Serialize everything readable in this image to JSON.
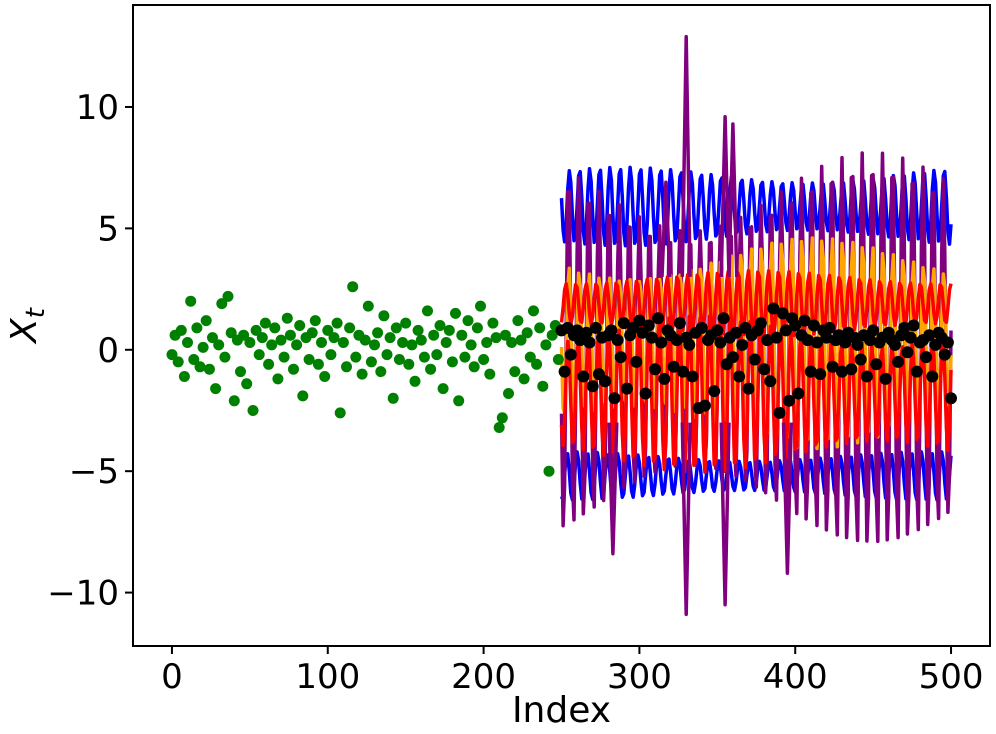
{
  "chart_data": {
    "type": "line",
    "xlabel": "Index",
    "ylabel": "X",
    "ylabel_subscript": "t",
    "xlim": [
      -25,
      525
    ],
    "ylim": [
      -12.2,
      14.2
    ],
    "xticks": [
      0,
      100,
      200,
      300,
      400,
      500
    ],
    "yticks": [
      -10,
      -5,
      0,
      5,
      10
    ],
    "xtick_labels": [
      "0",
      "100",
      "200",
      "300",
      "400",
      "500"
    ],
    "ytick_labels": [
      "−10",
      "−5",
      "0",
      "5",
      "10"
    ],
    "grid": false,
    "colors": {
      "observed": "#008000",
      "blue": "#0000ff",
      "purple": "#800080",
      "orange": "#ffa500",
      "red": "#ff0000",
      "black": "#000000"
    },
    "observed_points": {
      "name": "",
      "x": [
        0,
        2,
        4,
        6,
        8,
        10,
        12,
        14,
        16,
        18,
        20,
        22,
        24,
        26,
        28,
        30,
        32,
        34,
        36,
        38,
        40,
        42,
        44,
        46,
        48,
        50,
        52,
        54,
        56,
        58,
        60,
        62,
        64,
        66,
        68,
        70,
        72,
        74,
        76,
        78,
        80,
        82,
        84,
        86,
        88,
        90,
        92,
        94,
        96,
        98,
        100,
        102,
        104,
        106,
        108,
        110,
        112,
        114,
        116,
        118,
        120,
        122,
        124,
        126,
        128,
        130,
        132,
        134,
        136,
        138,
        140,
        142,
        144,
        146,
        148,
        150,
        152,
        154,
        156,
        158,
        160,
        162,
        164,
        166,
        168,
        170,
        172,
        174,
        176,
        178,
        180,
        182,
        184,
        186,
        188,
        190,
        192,
        194,
        196,
        198,
        200,
        202,
        204,
        206,
        208,
        210,
        212,
        214,
        216,
        218,
        220,
        222,
        224,
        226,
        228,
        230,
        232,
        234,
        236,
        238,
        240,
        242,
        244,
        246,
        248
      ],
      "y": [
        -0.2,
        0.6,
        -0.5,
        0.8,
        -1.1,
        0.3,
        2.0,
        -0.4,
        0.9,
        -0.7,
        0.1,
        1.2,
        -0.8,
        0.5,
        -1.6,
        0.2,
        1.9,
        -0.3,
        2.2,
        0.7,
        -2.1,
        0.4,
        -0.9,
        0.6,
        -1.4,
        0.3,
        -2.5,
        0.8,
        -0.2,
        0.5,
        1.1,
        -0.6,
        0.2,
        0.9,
        -1.2,
        0.4,
        -0.3,
        1.3,
        0.6,
        -0.8,
        0.2,
        1.0,
        -1.9,
        0.5,
        -0.4,
        0.7,
        1.2,
        -0.6,
        0.3,
        -1.1,
        0.8,
        -0.2,
        0.5,
        1.1,
        -2.6,
        0.3,
        -0.7,
        0.9,
        2.6,
        -0.3,
        0.6,
        -1.0,
        0.4,
        1.8,
        -0.5,
        0.2,
        0.7,
        -0.9,
        1.4,
        -0.2,
        0.5,
        -2.0,
        0.9,
        -0.4,
        0.3,
        1.1,
        -0.6,
        0.2,
        -1.3,
        0.8,
        0.4,
        -0.3,
        1.6,
        -0.8,
        0.6,
        -0.2,
        1.0,
        -1.6,
        0.3,
        0.8,
        -0.5,
        1.5,
        -2.1,
        0.6,
        -0.3,
        1.2,
        0.2,
        -0.7,
        0.9,
        1.8,
        -0.4,
        0.3,
        -1.0,
        1.1,
        0.5,
        -3.2,
        -2.8,
        0.6,
        -1.8,
        0.3,
        -0.9,
        1.2,
        0.4,
        -1.2,
        0.7,
        -0.3,
        1.6,
        -0.6,
        0.9,
        -1.5,
        0.2,
        -5.0,
        0.6,
        1.0,
        -0.4
      ]
    },
    "forecast_bands": [
      {
        "name": "",
        "color": "blue",
        "x0": 250,
        "x1": 500,
        "center": 5.9,
        "amplitude": 1.3,
        "period": 6.5,
        "phase": 0.0
      },
      {
        "name": "",
        "color": "blue",
        "x0": 250,
        "x1": 500,
        "center": -5.2,
        "amplitude": 0.8,
        "period": 6.5,
        "phase": 1.5
      },
      {
        "name": "",
        "color": "purple",
        "x0": 250,
        "x1": 500,
        "center": 0.0,
        "amplitude": 6.5,
        "period": 6.5,
        "phase": 0.6
      },
      {
        "name": "",
        "color": "orange",
        "x0": 250,
        "x1": 500,
        "center": 0.3,
        "amplitude": 3.5,
        "period": 6.5,
        "phase": 0.3
      },
      {
        "name": "",
        "color": "red",
        "x0": 250,
        "x1": 500,
        "center": 1.9,
        "amplitude": 1.1,
        "period": 6.5,
        "phase": 2.2
      },
      {
        "name": "",
        "color": "red",
        "x0": 250,
        "x1": 500,
        "center": -1.8,
        "amplitude": 2.6,
        "period": 6.5,
        "phase": 0.9
      }
    ],
    "purple_spikes": [
      {
        "x": 330,
        "y": 12.9
      },
      {
        "x": 330,
        "y": -10.9
      },
      {
        "x": 355,
        "y": 9.6
      },
      {
        "x": 355,
        "y": -10.5
      },
      {
        "x": 360,
        "y": 9.3
      },
      {
        "x": 395,
        "y": -9.2
      },
      {
        "x": 317,
        "y": 6.9
      },
      {
        "x": 283,
        "y": -8.4
      }
    ],
    "predicted_points": {
      "name": "",
      "x": [
        250,
        252,
        254,
        256,
        258,
        260,
        262,
        264,
        266,
        268,
        270,
        272,
        274,
        276,
        278,
        280,
        282,
        284,
        286,
        288,
        290,
        292,
        294,
        296,
        298,
        300,
        302,
        304,
        306,
        308,
        310,
        312,
        314,
        316,
        318,
        320,
        322,
        324,
        326,
        328,
        330,
        332,
        334,
        336,
        338,
        340,
        342,
        344,
        346,
        348,
        350,
        352,
        354,
        356,
        358,
        360,
        362,
        364,
        366,
        368,
        370,
        372,
        374,
        376,
        378,
        380,
        382,
        384,
        386,
        388,
        390,
        392,
        394,
        396,
        398,
        400,
        402,
        404,
        406,
        408,
        410,
        412,
        414,
        416,
        418,
        420,
        422,
        424,
        426,
        428,
        430,
        432,
        434,
        436,
        438,
        440,
        442,
        444,
        446,
        448,
        450,
        452,
        454,
        456,
        458,
        460,
        462,
        464,
        466,
        468,
        470,
        472,
        474,
        476,
        478,
        480,
        482,
        484,
        486,
        488,
        490,
        492,
        494,
        496,
        498,
        500
      ],
      "y": [
        0.8,
        -0.9,
        0.9,
        -0.2,
        0.6,
        0.8,
        0.4,
        -1.1,
        0.7,
        0.3,
        -1.5,
        0.9,
        -1.0,
        0.5,
        -1.3,
        0.6,
        0.8,
        -2.0,
        0.4,
        -0.3,
        1.1,
        -1.6,
        0.6,
        0.9,
        -0.5,
        1.2,
        0.7,
        -1.8,
        1.0,
        0.5,
        -0.8,
        1.3,
        0.3,
        -1.2,
        0.8,
        0.6,
        -0.7,
        0.4,
        1.1,
        -0.9,
        0.5,
        0.2,
        -1.1,
        0.7,
        -2.4,
        0.9,
        -2.3,
        0.4,
        0.6,
        -1.7,
        0.8,
        0.3,
        1.3,
        -0.6,
        0.5,
        -0.3,
        0.7,
        -1.1,
        0.2,
        0.9,
        -1.6,
        0.6,
        -0.4,
        0.8,
        1.1,
        -0.8,
        0.4,
        -1.3,
        1.7,
        0.5,
        -2.6,
        1.5,
        0.8,
        -2.1,
        1.3,
        1.0,
        -1.8,
        0.6,
        1.2,
        0.4,
        -0.9,
        1.0,
        0.3,
        -1.0,
        0.8,
        0.5,
        0.9,
        -0.7,
        0.4,
        0.6,
        -0.9,
        0.3,
        0.7,
        -0.8,
        0.5,
        0.2,
        -0.4,
        0.6,
        -1.1,
        0.4,
        0.8,
        -0.6,
        0.3,
        0.5,
        -1.2,
        0.7,
        0.4,
        0.2,
        -0.5,
        0.6,
        0.9,
        -0.1,
        0.5,
        1.0,
        -0.9,
        0.3,
        0.4,
        -0.3,
        0.6,
        -1.1,
        0.2,
        0.7,
        0.5,
        -0.2,
        0.3,
        -2.0
      ]
    }
  }
}
